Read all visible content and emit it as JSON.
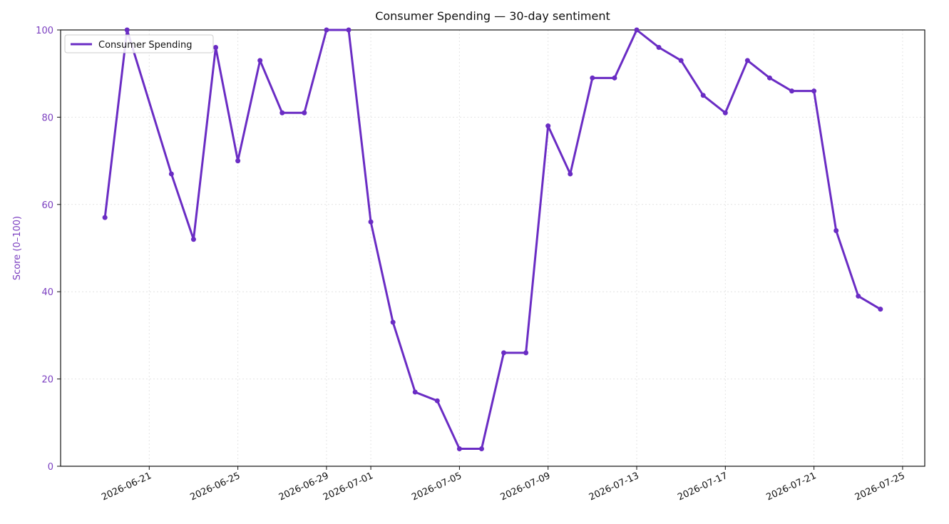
{
  "chart_data": {
    "type": "line",
    "title": "Consumer Spending — 30-day sentiment",
    "y_label": "Score (0–100)",
    "x": [
      "2026-06-19",
      "2026-06-20",
      "2026-06-22",
      "2026-06-23",
      "2026-06-24",
      "2026-06-25",
      "2026-06-26",
      "2026-06-27",
      "2026-06-28",
      "2026-06-29",
      "2026-06-30",
      "2026-07-01",
      "2026-07-02",
      "2026-07-03",
      "2026-07-04",
      "2026-07-05",
      "2026-07-06",
      "2026-07-07",
      "2026-07-08",
      "2026-07-09",
      "2026-07-10",
      "2026-07-11",
      "2026-07-12",
      "2026-07-13",
      "2026-07-14",
      "2026-07-15",
      "2026-07-16",
      "2026-07-17",
      "2026-07-18",
      "2026-07-19",
      "2026-07-20",
      "2026-07-21",
      "2026-07-22",
      "2026-07-23",
      "2026-07-24"
    ],
    "series": [
      {
        "name": "Consumer Spending",
        "color": "#6a2cc4",
        "values": [
          57,
          100,
          67,
          52,
          96,
          70,
          93,
          81,
          81,
          100,
          100,
          56,
          33,
          17,
          15,
          4,
          4,
          26,
          26,
          78,
          67,
          89,
          89,
          100,
          96,
          93,
          85,
          81,
          93,
          89,
          86,
          86,
          54,
          39,
          36
        ]
      }
    ],
    "xlim": [
      "2026-06-17",
      "2026-07-26"
    ],
    "xticks": [
      "2026-06-21",
      "2026-06-25",
      "2026-06-29",
      "2026-07-01",
      "2026-07-05",
      "2026-07-09",
      "2026-07-13",
      "2026-07-17",
      "2026-07-21",
      "2026-07-25"
    ],
    "ylim": [
      0,
      100
    ],
    "yticks": [
      0,
      20,
      40,
      60,
      80,
      100
    ],
    "grid": true,
    "legend": "upper-left",
    "axis_color": "#7b3fc0"
  }
}
